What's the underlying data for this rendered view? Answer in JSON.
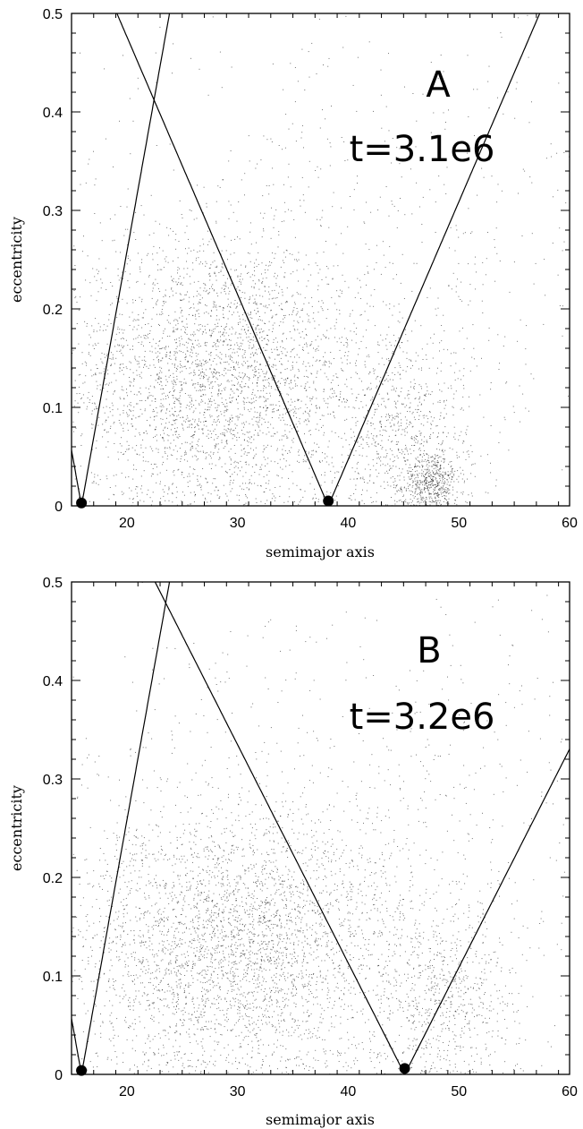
{
  "chart_data": [
    {
      "type": "scatter",
      "panel_label": "A",
      "annotation": "t=3.1e6",
      "xlabel": "semimajor axis",
      "ylabel": "eccentricity",
      "xlim": [
        15,
        60
      ],
      "ylim": [
        0,
        0.5
      ],
      "x_ticks": [
        20,
        30,
        40,
        50,
        60
      ],
      "y_ticks": [
        0,
        0.1,
        0.2,
        0.3,
        0.4,
        0.5
      ],
      "planets": [
        {
          "a": 15.9,
          "e": 0.003
        },
        {
          "a": 38.2,
          "e": 0.005
        }
      ],
      "density_clusters": [
        {
          "a": 28,
          "e": 0.13,
          "sa": 7,
          "se": 0.07,
          "n": 3200
        },
        {
          "a": 45,
          "e": 0.07,
          "sa": 3,
          "se": 0.05,
          "n": 700
        },
        {
          "a": 47.5,
          "e": 0.025,
          "sa": 1.2,
          "se": 0.015,
          "n": 500
        },
        {
          "a": 40,
          "e": 0.25,
          "sa": 18,
          "se": 0.14,
          "n": 900
        }
      ]
    },
    {
      "type": "scatter",
      "panel_label": "B",
      "annotation": "t=3.2e6",
      "xlabel": "semimajor axis",
      "ylabel": "eccentricity",
      "xlim": [
        15,
        60
      ],
      "ylim": [
        0,
        0.5
      ],
      "x_ticks": [
        20,
        30,
        40,
        50,
        60
      ],
      "y_ticks": [
        0,
        0.1,
        0.2,
        0.3,
        0.4,
        0.5
      ],
      "planets": [
        {
          "a": 15.9,
          "e": 0.004
        },
        {
          "a": 45.1,
          "e": 0.006
        }
      ],
      "density_clusters": [
        {
          "a": 30,
          "e": 0.13,
          "sa": 8,
          "se": 0.07,
          "n": 3600
        },
        {
          "a": 49,
          "e": 0.08,
          "sa": 3,
          "se": 0.05,
          "n": 600
        },
        {
          "a": 40,
          "e": 0.25,
          "sa": 18,
          "se": 0.14,
          "n": 900
        }
      ]
    }
  ]
}
